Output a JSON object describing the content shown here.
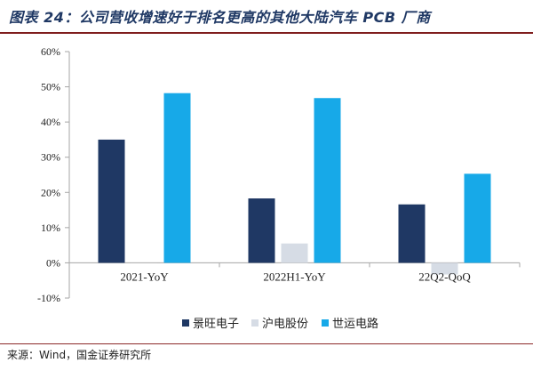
{
  "header": {
    "title": "图表 24：公司营收增速好于排名更高的其他大陆汽车 PCB 厂商"
  },
  "footer": {
    "source": "来源：Wind，国金证券研究所"
  },
  "chart_data": {
    "type": "bar",
    "title": "图表 24：公司营收增速好于排名更高的其他大陆汽车 PCB 厂商",
    "xlabel": "",
    "ylabel": "",
    "categories": [
      "2021-YoY",
      "2022H1-YoY",
      "22Q2-QoQ"
    ],
    "series": [
      {
        "name": "景旺电子",
        "color": "#1f3864",
        "values": [
          35.0,
          18.3,
          16.6
        ]
      },
      {
        "name": "沪电股份",
        "color": "#d6dce5",
        "values": [
          0.0,
          5.5,
          -3.3
        ]
      },
      {
        "name": "世运电路",
        "color": "#17a9e8",
        "values": [
          48.2,
          46.8,
          25.3
        ]
      }
    ],
    "ylim": [
      -10,
      60
    ],
    "yticks": [
      -10,
      0,
      10,
      20,
      30,
      40,
      50,
      60
    ],
    "ytick_labels": [
      "-10%",
      "0%",
      "10%",
      "20%",
      "30%",
      "40%",
      "50%",
      "60%"
    ],
    "grid": false,
    "legend_position": "bottom"
  }
}
